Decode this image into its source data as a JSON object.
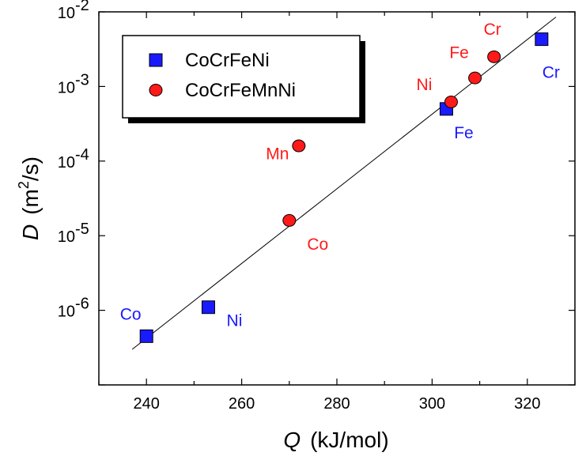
{
  "chart_data": {
    "type": "scatter",
    "xlabel": {
      "symbol": "Q",
      "units": "(kJ/mol)"
    },
    "ylabel": {
      "symbol": "D",
      "units_prefix": "(m",
      "units_exp": "2",
      "units_suffix": "/s)"
    },
    "xlim": [
      230,
      330
    ],
    "ylim_log10": [
      -7,
      -2
    ],
    "x_ticks": [
      240,
      260,
      280,
      300,
      320
    ],
    "y_ticks": [
      {
        "exp": -2,
        "mantissa": "10",
        "power": "-2"
      },
      {
        "exp": -3,
        "mantissa": "10",
        "power": "-3"
      },
      {
        "exp": -4,
        "mantissa": "10",
        "power": "-4"
      },
      {
        "exp": -5,
        "mantissa": "10",
        "power": "-5"
      },
      {
        "exp": -6,
        "mantissa": "10",
        "power": "-6"
      }
    ],
    "series": [
      {
        "name": "CoCrFeNi",
        "marker": "square",
        "color": "#1a1aff",
        "points": [
          {
            "label": "Co",
            "x": 240,
            "y": 4.5e-07
          },
          {
            "label": "Ni",
            "x": 253,
            "y": 1.1e-06
          },
          {
            "label": "Fe",
            "x": 303,
            "y": 0.0005
          },
          {
            "label": "Cr",
            "x": 323,
            "y": 0.0043
          }
        ]
      },
      {
        "name": "CoCrFeMnNi",
        "marker": "circle",
        "color": "#ff1a1a",
        "points": [
          {
            "label": "Co",
            "x": 270,
            "y": 1.6e-05
          },
          {
            "label": "Mn",
            "x": 272,
            "y": 0.00016
          },
          {
            "label": "Ni",
            "x": 304,
            "y": 0.00062
          },
          {
            "label": "Fe",
            "x": 309,
            "y": 0.0013
          },
          {
            "label": "Cr",
            "x": 313,
            "y": 0.0025
          }
        ]
      }
    ],
    "fit_line": {
      "x": [
        237,
        326
      ],
      "y": [
        3e-07,
        0.0085
      ]
    },
    "legend": {
      "placement": "top-left"
    }
  }
}
